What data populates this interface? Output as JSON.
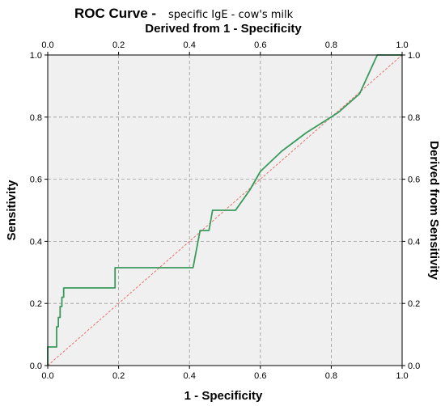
{
  "title": {
    "main": "ROC Curve -",
    "sub": "specific IgE - cow's milk"
  },
  "chart_data": {
    "type": "line",
    "xlabel": "1 - Specificity",
    "ylabel": "Sensitivity",
    "x2label": "Derived from 1 - Specificity",
    "y2label": "Derived from Sensitivity",
    "xlim": [
      0,
      1
    ],
    "ylim": [
      0,
      1
    ],
    "x_ticks": [
      "0.0",
      "0.2",
      "0.4",
      "0.6",
      "0.8",
      "1.0"
    ],
    "y_ticks": [
      "0.0",
      "0.2",
      "0.4",
      "0.6",
      "0.8",
      "1.0"
    ],
    "grid": true,
    "colors": {
      "roc": "#3a9a5c",
      "reference": "#e8736a",
      "background": "#f0f0f0",
      "grid": "#9a9a9a"
    },
    "series": [
      {
        "role": "roc",
        "x": [
          0.0,
          0.0,
          0.025,
          0.025,
          0.03,
          0.03,
          0.035,
          0.035,
          0.04,
          0.04,
          0.045,
          0.045,
          0.19,
          0.19,
          0.41,
          0.43,
          0.43,
          0.455,
          0.465,
          0.465,
          0.53,
          0.57,
          0.6,
          0.66,
          0.73,
          0.82,
          0.88,
          0.93,
          1.0
        ],
        "y": [
          0.0,
          0.06,
          0.06,
          0.125,
          0.125,
          0.155,
          0.155,
          0.19,
          0.19,
          0.22,
          0.22,
          0.25,
          0.25,
          0.315,
          0.315,
          0.435,
          0.435,
          0.435,
          0.5,
          0.5,
          0.5,
          0.565,
          0.625,
          0.69,
          0.75,
          0.815,
          0.875,
          1.0,
          1.0
        ]
      },
      {
        "role": "reference",
        "x": [
          0,
          1
        ],
        "y": [
          0,
          1
        ]
      }
    ]
  }
}
